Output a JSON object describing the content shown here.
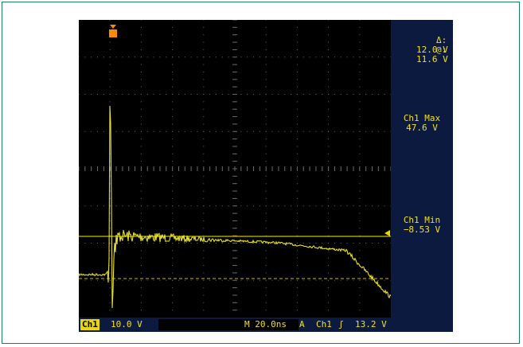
{
  "display": {
    "delta_label": "Δ:",
    "delta_value": "12.0 V",
    "at_label": "@:",
    "at_value": "11.6 V",
    "ch1_max_label": "Ch1 Max",
    "ch1_max_value": "47.6 V",
    "ch1_min_label": "Ch1 Min",
    "ch1_min_value": "−8.53 V"
  },
  "status_bar": {
    "channel": "Ch1",
    "scale": "10.0 V",
    "timebase": "M 20.0ns",
    "trigger_mode": "A",
    "trigger_channel": "Ch1",
    "trigger_edge": "ʃ",
    "trigger_level": "13.2 V"
  },
  "trigger_marker": "T",
  "colors": {
    "trace": "#e8e030",
    "cursor": "#c8c000",
    "grid": "#6a6a6a",
    "panel": "#0b1a3e",
    "text": "#f0e020",
    "trigger_marker": "#ff8c00"
  }
}
